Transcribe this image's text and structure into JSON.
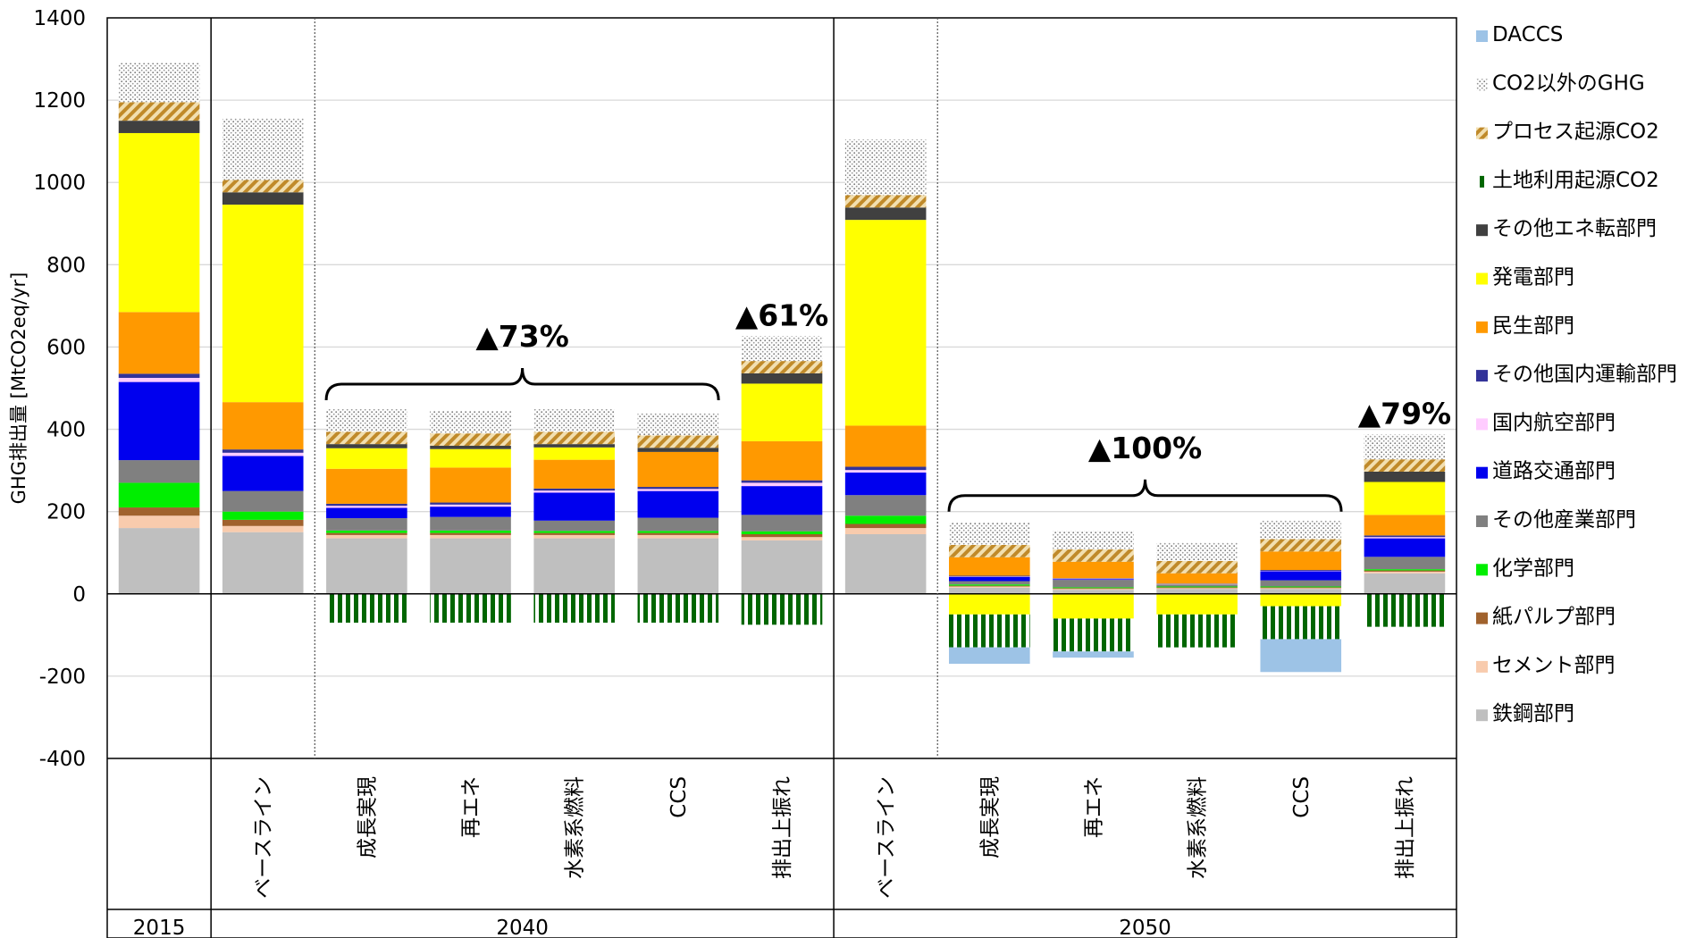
{
  "chart_data": {
    "type": "bar",
    "stacked": true,
    "ylabel": "GHG排出量 [MtCO2eq/yr]",
    "ylim": [
      -400,
      1400
    ],
    "yticks": [
      -400,
      -200,
      0,
      200,
      400,
      600,
      800,
      1000,
      1200,
      1400
    ],
    "grid": true,
    "legend_position": "right",
    "groups": [
      {
        "label": "2015",
        "categories": [
          ""
        ]
      },
      {
        "label": "2040",
        "categories": [
          "ベースライン",
          "成長実現",
          "再エネ",
          "水素系燃料",
          "CCS",
          "排出上振れ"
        ]
      },
      {
        "label": "2050",
        "categories": [
          "ベースライン",
          "成長実現",
          "再エネ",
          "水素系燃料",
          "CCS",
          "排出上振れ"
        ]
      }
    ],
    "series": [
      {
        "name": "鉄鋼部門",
        "color": "#BFBFBF",
        "pattern": "solid",
        "values": [
          160,
          150,
          135,
          135,
          135,
          135,
          130,
          145,
          15,
          10,
          12,
          12,
          50
        ]
      },
      {
        "name": "セメント部門",
        "color": "#F8CBAD",
        "pattern": "solid",
        "values": [
          30,
          15,
          8,
          8,
          8,
          8,
          8,
          15,
          3,
          2,
          2,
          2,
          4
        ]
      },
      {
        "name": "紙パルプ部門",
        "color": "#A0622D",
        "pattern": "solid",
        "values": [
          20,
          15,
          5,
          5,
          5,
          5,
          7,
          10,
          2,
          2,
          2,
          2,
          3
        ]
      },
      {
        "name": "化学部門",
        "color": "#00EE00",
        "pattern": "solid",
        "values": [
          60,
          20,
          6,
          6,
          5,
          5,
          7,
          20,
          3,
          2,
          2,
          2,
          3
        ]
      },
      {
        "name": "その他産業部門",
        "color": "#808080",
        "pattern": "solid",
        "values": [
          55,
          50,
          30,
          33,
          25,
          32,
          40,
          50,
          8,
          18,
          5,
          15,
          30
        ]
      },
      {
        "name": "道路交通部門",
        "color": "#0000EE",
        "pattern": "solid",
        "values": [
          190,
          85,
          25,
          25,
          68,
          65,
          70,
          55,
          10,
          2,
          0,
          22,
          45
        ]
      },
      {
        "name": "国内航空部門",
        "color": "#FFCCFF",
        "pattern": "solid",
        "values": [
          10,
          8,
          5,
          5,
          5,
          5,
          8,
          6,
          1,
          1,
          1,
          1,
          3
        ]
      },
      {
        "name": "その他国内運輸部門",
        "color": "#333399",
        "pattern": "solid",
        "values": [
          10,
          8,
          5,
          5,
          5,
          5,
          6,
          8,
          2,
          1,
          1,
          2,
          4
        ]
      },
      {
        "name": "民生部門",
        "color": "#FF9900",
        "pattern": "solid",
        "values": [
          150,
          115,
          85,
          85,
          70,
          85,
          95,
          100,
          45,
          40,
          25,
          45,
          50
        ]
      },
      {
        "name": "発電部門",
        "color": "#FFFF00",
        "pattern": "solid",
        "values": [
          435,
          480,
          50,
          45,
          30,
          0,
          140,
          500,
          0,
          0,
          0,
          0,
          80
        ]
      },
      {
        "name": "その他エネ転部門",
        "color": "#404040",
        "pattern": "solid",
        "values": [
          30,
          30,
          10,
          8,
          8,
          10,
          25,
          30,
          0,
          0,
          0,
          0,
          25
        ]
      },
      {
        "name": "土地利用起源CO2",
        "color": "#006600",
        "pattern": "vstripes",
        "values": [
          0,
          0,
          -70,
          -70,
          -70,
          -70,
          -75,
          0,
          -80,
          -80,
          -80,
          -80,
          -80
        ]
      },
      {
        "name": "プロセス起源CO2",
        "color": "#C08A2A",
        "pattern": "hatch",
        "values": [
          45,
          30,
          30,
          30,
          30,
          30,
          30,
          30,
          30,
          30,
          30,
          30,
          30
        ]
      },
      {
        "name": "CO2以外のGHG",
        "color": "#999999",
        "pattern": "dots",
        "values": [
          95,
          150,
          55,
          55,
          55,
          55,
          60,
          135,
          55,
          45,
          45,
          45,
          60
        ]
      },
      {
        "name": "DACCS",
        "color": "#9DC3E6",
        "pattern": "solid",
        "values": [
          0,
          0,
          0,
          0,
          0,
          0,
          0,
          0,
          -40,
          -15,
          0,
          -80,
          0
        ]
      }
    ],
    "negative_offsets": {
      "発電部門": [
        0,
        0,
        0,
        0,
        0,
        0,
        0,
        0,
        -50,
        -60,
        -50,
        -30,
        0
      ]
    },
    "annotations": [
      {
        "text": "▲73%",
        "group": "2040",
        "from_bar": 1,
        "to_bar": 4
      },
      {
        "text": "▲61%",
        "group": "2040",
        "bar": 5
      },
      {
        "text": "▲100%",
        "group": "2050",
        "from_bar": 1,
        "to_bar": 4
      },
      {
        "text": "▲79%",
        "group": "2050",
        "bar": 5
      }
    ]
  }
}
